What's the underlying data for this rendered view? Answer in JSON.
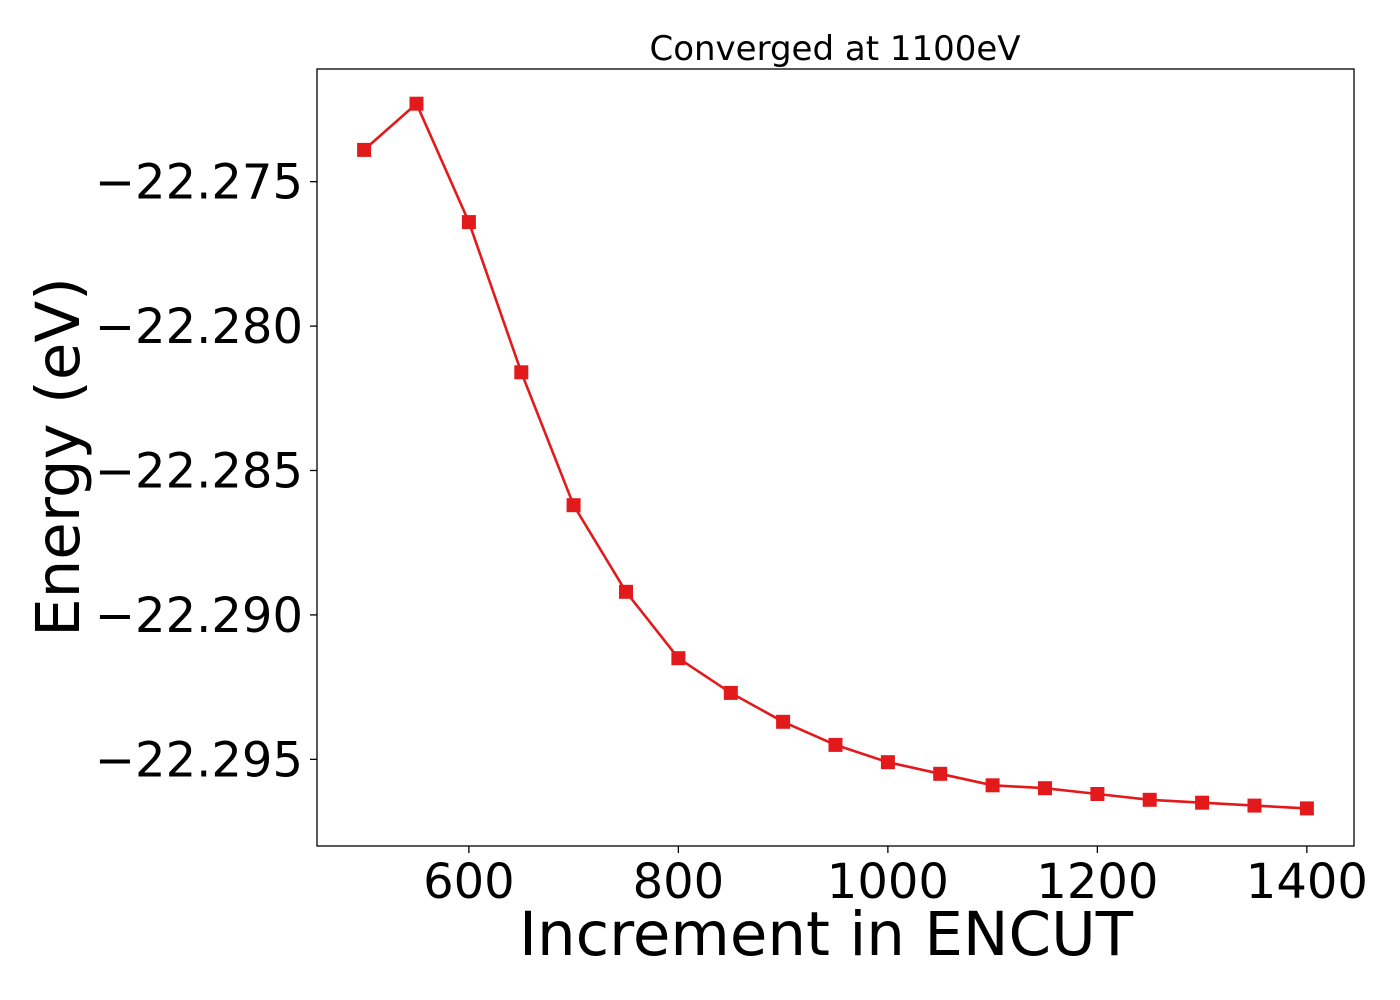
{
  "chart_data": {
    "type": "line",
    "title": "Converged at 1100eV",
    "xlabel": "Increment in ENCUT",
    "ylabel": "Energy (eV)",
    "xlim": [
      455,
      1445
    ],
    "ylim": [
      -22.298,
      -22.2711
    ],
    "xticks": [
      600,
      800,
      1000,
      1200,
      1400
    ],
    "xtick_labels": [
      "600",
      "800",
      "1000",
      "1200",
      "1400"
    ],
    "yticks": [
      -22.275,
      -22.28,
      -22.285,
      -22.29,
      -22.295
    ],
    "ytick_labels": [
      "−22.275",
      "−22.280",
      "−22.285",
      "−22.290",
      "−22.295"
    ],
    "grid": false,
    "marker": "square",
    "color": "#e31a1c",
    "series": [
      {
        "x": [
          500,
          550,
          600,
          650,
          700,
          750,
          800,
          850,
          900,
          950,
          1000,
          1050,
          1100,
          1150,
          1200,
          1250,
          1300,
          1350,
          1400
        ],
        "y": [
          -22.2739,
          -22.2723,
          -22.2764,
          -22.2816,
          -22.2862,
          -22.2892,
          -22.2915,
          -22.2927,
          -22.2937,
          -22.2945,
          -22.2951,
          -22.2955,
          -22.2959,
          -22.296,
          -22.2962,
          -22.2964,
          -22.2965,
          -22.2966,
          -22.2967
        ]
      }
    ]
  }
}
